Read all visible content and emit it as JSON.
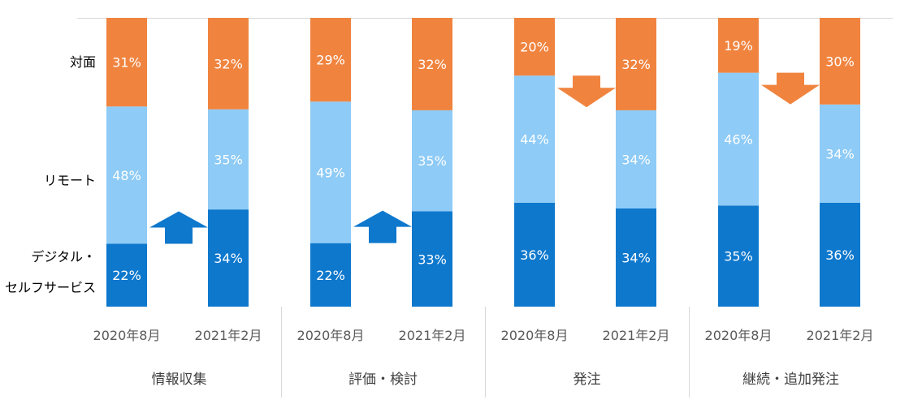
{
  "chart_data": {
    "type": "bar",
    "stacked": true,
    "ylim": [
      0,
      100
    ],
    "segments": [
      {
        "key": "digital",
        "label_lines": [
          "デジタル・",
          "セルフサービス"
        ],
        "color": "#0e78cd"
      },
      {
        "key": "remote",
        "label_lines": [
          "リモート"
        ],
        "color": "#8ecbf6"
      },
      {
        "key": "face",
        "label_lines": [
          "対面"
        ],
        "color": "#f0843f"
      }
    ],
    "groups": [
      {
        "name": "情報収集",
        "arrow": {
          "direction": "up",
          "color": "#0e78cd"
        },
        "bars": [
          {
            "period": "2020年8月",
            "values": [
              22,
              48,
              31
            ]
          },
          {
            "period": "2021年2月",
            "values": [
              34,
              35,
              32
            ]
          }
        ]
      },
      {
        "name": "評価・検討",
        "arrow": {
          "direction": "up",
          "color": "#0e78cd"
        },
        "bars": [
          {
            "period": "2020年8月",
            "values": [
              22,
              49,
              29
            ]
          },
          {
            "period": "2021年2月",
            "values": [
              33,
              35,
              32
            ]
          }
        ]
      },
      {
        "name": "発注",
        "arrow": {
          "direction": "down",
          "color": "#f0843f"
        },
        "bars": [
          {
            "period": "2020年8月",
            "values": [
              36,
              44,
              20
            ]
          },
          {
            "period": "2021年2月",
            "values": [
              34,
              34,
              32
            ]
          }
        ]
      },
      {
        "name": "継続・追加発注",
        "arrow": {
          "direction": "down",
          "color": "#f0843f"
        },
        "bars": [
          {
            "period": "2020年8月",
            "values": [
              35,
              46,
              19
            ]
          },
          {
            "period": "2021年2月",
            "values": [
              36,
              34,
              30
            ]
          }
        ]
      }
    ]
  }
}
